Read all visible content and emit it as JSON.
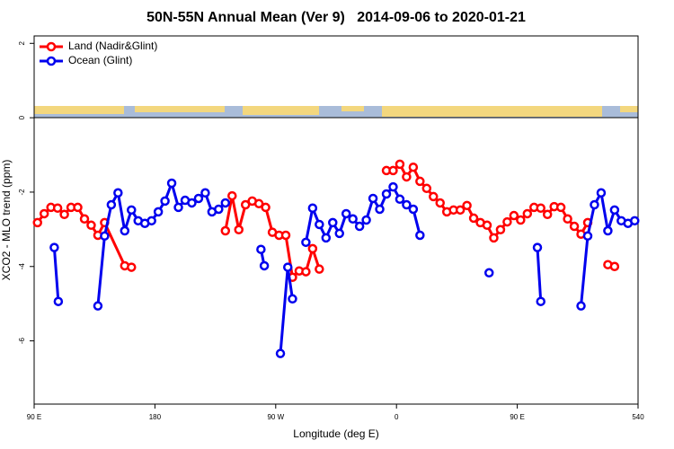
{
  "chart_data": {
    "type": "line",
    "title": "50N-55N Annual Mean (Ver 9)   2014-09-06 to 2020-01-21",
    "xlabel": "Longitude (deg E)",
    "ylabel": "XCO2 - MLO trend (ppm)",
    "xlim": [
      90,
      540
    ],
    "ylim": [
      -7.7,
      2.2
    ],
    "xticks": [
      {
        "value": 90,
        "label": "90 E"
      },
      180,
      {
        "value": 270,
        "label": "90 W"
      },
      {
        "value": 360,
        "label": "0"
      },
      {
        "value": 450,
        "label": "90 E"
      },
      540
    ],
    "yticks": [
      -6,
      -4,
      -2,
      0,
      2
    ],
    "legend": "topleft",
    "series": [
      {
        "name": "Land (Nadir&Glint)",
        "color": "#ff0000",
        "x": [
          92.5,
          97.5,
          102.5,
          107.5,
          112.5,
          117.5,
          122.5,
          127.5,
          132.5,
          137.5,
          142.5,
          157.5,
          162.5,
          null,
          232.5,
          237.5,
          242.5,
          247.5,
          252.5,
          257.5,
          262.5,
          267.5,
          272.5,
          277.5,
          282.5,
          287.5,
          292.5,
          297.5,
          302.5,
          null,
          352.5,
          357.5,
          362.5,
          367.5,
          372.5,
          377.5,
          382.5,
          387.5,
          392.5,
          397.5,
          402.5,
          407.5,
          412.5,
          417.5,
          422.5,
          427.5,
          432.5,
          437.5,
          442.5,
          447.5,
          452.5,
          457.5,
          462.5,
          467.5,
          472.5,
          477.5,
          482.5,
          487.5,
          492.5,
          497.5,
          502.5,
          null,
          517.5,
          522.5
        ],
        "values": [
          -2.82,
          -2.58,
          -2.41,
          -2.43,
          -2.6,
          -2.41,
          -2.41,
          -2.72,
          -2.89,
          -3.16,
          -2.82,
          -3.98,
          -4.02,
          null,
          -3.04,
          -2.1,
          -3.01,
          -2.34,
          -2.24,
          -2.31,
          -2.41,
          -3.08,
          -3.16,
          -3.16,
          -4.29,
          -4.12,
          -4.14,
          -3.52,
          -4.07,
          null,
          -1.42,
          -1.42,
          -1.25,
          -1.59,
          -1.33,
          -1.71,
          -1.9,
          -2.12,
          -2.29,
          -2.53,
          -2.48,
          -2.48,
          -2.36,
          -2.7,
          -2.82,
          -2.89,
          -3.23,
          -3.01,
          -2.8,
          -2.63,
          -2.75,
          -2.58,
          -2.41,
          -2.43,
          -2.6,
          -2.39,
          -2.41,
          -2.72,
          -2.92,
          -3.13,
          -2.82,
          null,
          -3.95,
          -4.0
        ]
      },
      {
        "name": "Ocean (Glint)",
        "color": "#0000ee",
        "x": [
          105,
          108,
          null,
          137.5,
          142.5,
          147.5,
          152.5,
          157.5,
          162.5,
          167.5,
          172.5,
          177.5,
          182.5,
          187.5,
          192.5,
          197.5,
          202.5,
          207.5,
          212.5,
          217.5,
          222.5,
          227.5,
          232.5,
          null,
          259,
          261.5,
          null,
          273.5,
          279,
          282.5,
          null,
          292.5,
          297.5,
          302.5,
          307.5,
          312.5,
          317.5,
          322.5,
          327.5,
          332.5,
          337.5,
          342.5,
          347.5,
          352.5,
          357.5,
          362.5,
          367.5,
          372.5,
          377.5,
          null,
          429,
          null,
          465,
          467.5,
          null,
          497.5,
          502.5,
          507.5,
          512.5,
          517.5,
          522.5,
          527.5,
          532.5,
          537.5
        ],
        "values": [
          -3.49,
          -4.94,
          null,
          -5.06,
          -3.18,
          -2.34,
          -2.02,
          -3.04,
          -2.48,
          -2.77,
          -2.84,
          -2.77,
          -2.53,
          -2.24,
          -1.76,
          -2.41,
          -2.22,
          -2.29,
          -2.17,
          -2.02,
          -2.53,
          -2.46,
          -2.29,
          null,
          -3.54,
          -3.98,
          null,
          -6.34,
          -4.02,
          -4.87,
          null,
          -3.35,
          -2.43,
          -2.87,
          -3.23,
          -2.82,
          -3.11,
          -2.58,
          -2.72,
          -2.92,
          -2.75,
          -2.17,
          -2.46,
          -2.05,
          -1.86,
          -2.19,
          -2.34,
          -2.46,
          -3.16,
          null,
          -4.17,
          null,
          -3.49,
          -4.94,
          null,
          -5.06,
          -3.18,
          -2.34,
          -2.02,
          -3.04,
          -2.48,
          -2.77,
          -2.84,
          -2.77
        ]
      }
    ]
  }
}
